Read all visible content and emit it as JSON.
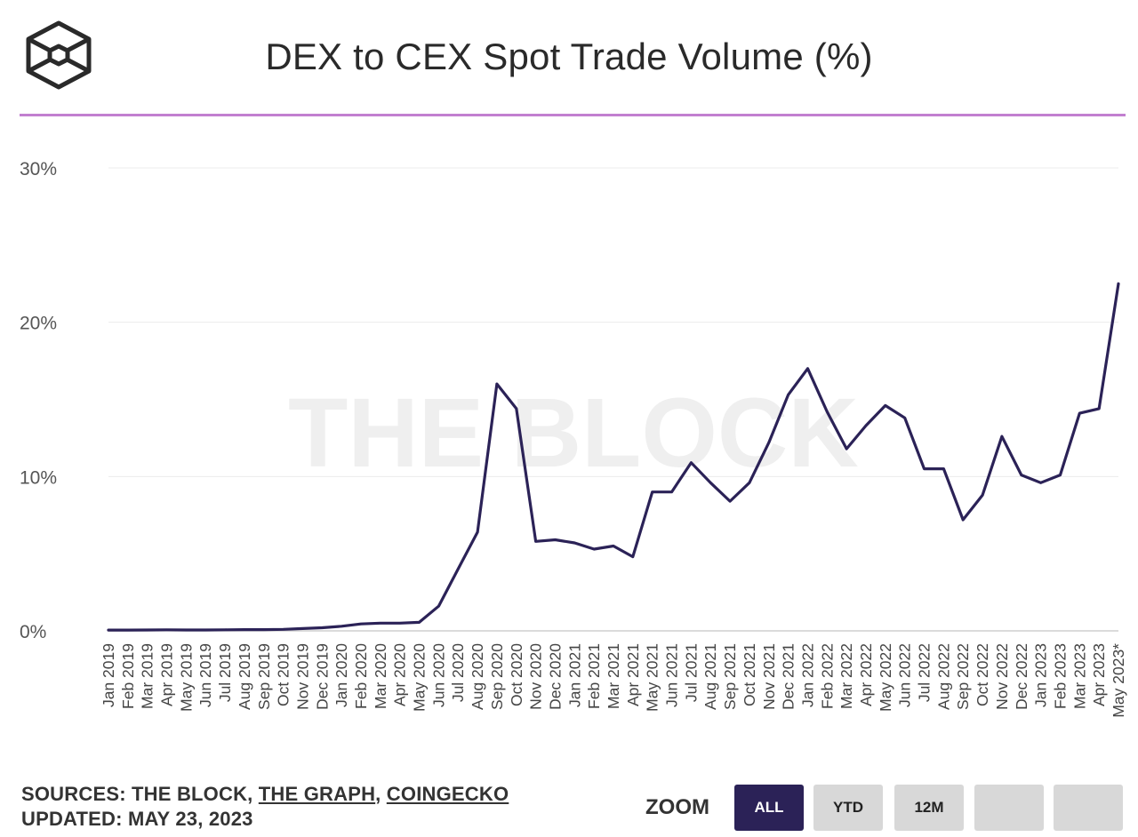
{
  "title": "DEX to CEX Spot Trade Volume (%)",
  "logo": {
    "icon": "the-block-cube-icon"
  },
  "watermark": "THE BLOCK",
  "colors": {
    "line": "#2b2257",
    "accent_rule": "#c27fd0",
    "active_button": "#2b2257",
    "button": "#d8d8d8"
  },
  "footer": {
    "sources_prefix": "SOURCES: THE BLOCK, ",
    "source_graph": "THE GRAPH",
    "separator": ", ",
    "source_coingecko": "COINGECKO",
    "updated": "UPDATED: MAY 23, 2023"
  },
  "zoom": {
    "label": "ZOOM",
    "buttons": [
      {
        "label": "ALL",
        "active": true
      },
      {
        "label": "YTD",
        "active": false
      },
      {
        "label": "12M",
        "active": false
      },
      {
        "label": "",
        "active": false
      },
      {
        "label": "",
        "active": false
      }
    ]
  },
  "chart_data": {
    "type": "line",
    "title": "DEX to CEX Spot Trade Volume (%)",
    "xlabel": "",
    "ylabel": "",
    "ylim": [
      0,
      30
    ],
    "yticks": [
      "0%",
      "10%",
      "20%",
      "30%"
    ],
    "grid": true,
    "categories": [
      "Jan 2019",
      "Feb 2019",
      "Mar 2019",
      "Apr 2019",
      "May 2019",
      "Jun 2019",
      "Jul 2019",
      "Aug 2019",
      "Sep 2019",
      "Oct 2019",
      "Nov 2019",
      "Dec 2019",
      "Jan 2020",
      "Feb 2020",
      "Mar 2020",
      "Apr 2020",
      "May 2020",
      "Jun 2020",
      "Jul 2020",
      "Aug 2020",
      "Sep 2020",
      "Oct 2020",
      "Nov 2020",
      "Dec 2020",
      "Jan 2021",
      "Feb 2021",
      "Mar 2021",
      "Apr 2021",
      "May 2021",
      "Jun 2021",
      "Jul 2021",
      "Aug 2021",
      "Sep 2021",
      "Oct 2021",
      "Nov 2021",
      "Dec 2021",
      "Jan 2022",
      "Feb 2022",
      "Mar 2022",
      "Apr 2022",
      "May 2022",
      "Jun 2022",
      "Jul 2022",
      "Aug 2022",
      "Sep 2022",
      "Oct 2022",
      "Nov 2022",
      "Dec 2022",
      "Jan 2023",
      "Feb 2023",
      "Mar 2023",
      "Apr 2023",
      "May 2023*"
    ],
    "series": [
      {
        "values": [
          0.05,
          0.05,
          0.06,
          0.07,
          0.06,
          0.06,
          0.07,
          0.08,
          0.08,
          0.1,
          0.15,
          0.2,
          0.3,
          0.45,
          0.5,
          0.5,
          0.55,
          1.6,
          4.0,
          6.4,
          16.0,
          14.4,
          5.8,
          5.9,
          5.7,
          5.3,
          5.5,
          4.8,
          9.0,
          9.0,
          10.9,
          9.6,
          8.4,
          9.6,
          12.2,
          15.3,
          17.0,
          14.2,
          11.8,
          13.3,
          14.6,
          13.8,
          10.5,
          10.5,
          7.2,
          8.8,
          12.6,
          10.1,
          9.6,
          10.1,
          14.1,
          14.4,
          22.5
        ]
      }
    ]
  }
}
